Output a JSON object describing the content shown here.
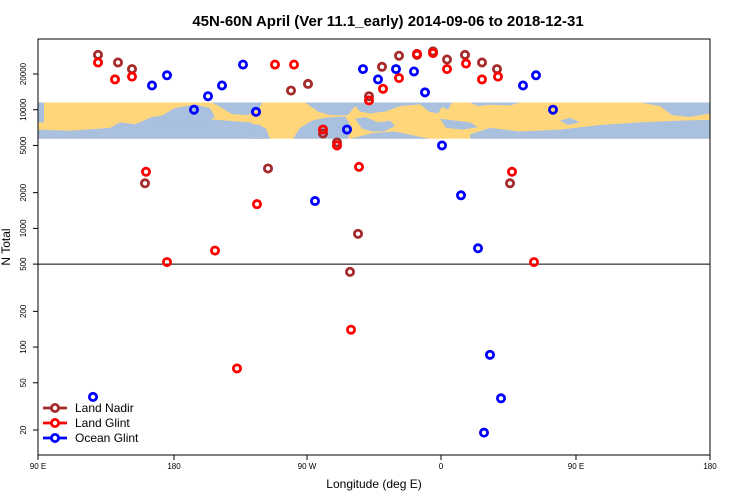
{
  "chart_data": {
    "type": "scatter",
    "title": "45N-60N April (Ver 11.1_early)   2014-09-06 to 2018-12-31",
    "xlabel": "Longitude (deg E)",
    "ylabel": "N Total",
    "y_scale": "log",
    "ylim": [
      15,
      45000
    ],
    "reference_line_y": 500,
    "background": "world map band (land yellow, ocean light blue) drawn between roughly 5700 and 11500 on the y axis",
    "colors": {
      "land": "#ffd77a",
      "ocean": "#a9c0df"
    },
    "x_ticks": [
      {
        "label": "90 E"
      },
      {
        "label": "180"
      },
      {
        "label": "90 W"
      },
      {
        "label": "0"
      },
      {
        "label": "90 E"
      },
      {
        "label": "180"
      }
    ],
    "y_ticks": [
      {
        "value": 20,
        "label": "20"
      },
      {
        "value": 50,
        "label": "50"
      },
      {
        "value": 100,
        "label": "100"
      },
      {
        "value": 200,
        "label": "200"
      },
      {
        "value": 500,
        "label": "500"
      },
      {
        "value": 1000,
        "label": "1000"
      },
      {
        "value": 2000,
        "label": "2000"
      },
      {
        "value": 5000,
        "label": "5000"
      },
      {
        "value": 10000,
        "label": "10000"
      },
      {
        "value": 20000,
        "label": "20000"
      }
    ],
    "legend": {
      "position": "bottom-left"
    },
    "series": [
      {
        "name": "Land Nadir",
        "color": "#a52a2a",
        "points": [
          {
            "x": 98,
            "y": 29000
          },
          {
            "x": 118,
            "y": 25000
          },
          {
            "x": 132,
            "y": 22000
          },
          {
            "x": 145,
            "y": 2400
          },
          {
            "x": 268,
            "y": 3200
          },
          {
            "x": 291,
            "y": 14500
          },
          {
            "x": 308,
            "y": 16500
          },
          {
            "x": 323,
            "y": 6300
          },
          {
            "x": 337,
            "y": 5300
          },
          {
            "x": 350,
            "y": 430
          },
          {
            "x": 358,
            "y": 900
          },
          {
            "x": 369,
            "y": 13000
          },
          {
            "x": 382,
            "y": 23000
          },
          {
            "x": 399,
            "y": 28500
          },
          {
            "x": 417,
            "y": 29000
          },
          {
            "x": 433,
            "y": 31000
          },
          {
            "x": 447,
            "y": 26500
          },
          {
            "x": 465,
            "y": 29000
          },
          {
            "x": 482,
            "y": 25000
          },
          {
            "x": 497,
            "y": 22000
          },
          {
            "x": 510,
            "y": 2400
          }
        ]
      },
      {
        "name": "Land Glint",
        "color": "#ff0000",
        "points": [
          {
            "x": 98,
            "y": 25000
          },
          {
            "x": 115,
            "y": 18000
          },
          {
            "x": 132,
            "y": 19000
          },
          {
            "x": 146,
            "y": 3000
          },
          {
            "x": 167,
            "y": 520
          },
          {
            "x": 215,
            "y": 650
          },
          {
            "x": 237,
            "y": 66
          },
          {
            "x": 257,
            "y": 1600
          },
          {
            "x": 275,
            "y": 24000
          },
          {
            "x": 294,
            "y": 24000
          },
          {
            "x": 323,
            "y": 6800
          },
          {
            "x": 337,
            "y": 5000
          },
          {
            "x": 351,
            "y": 140
          },
          {
            "x": 359,
            "y": 3300
          },
          {
            "x": 369,
            "y": 12000
          },
          {
            "x": 383,
            "y": 15000
          },
          {
            "x": 399,
            "y": 18500
          },
          {
            "x": 417,
            "y": 29500
          },
          {
            "x": 433,
            "y": 30000
          },
          {
            "x": 447,
            "y": 22000
          },
          {
            "x": 466,
            "y": 24500
          },
          {
            "x": 482,
            "y": 18000
          },
          {
            "x": 498,
            "y": 19000
          },
          {
            "x": 512,
            "y": 3000
          },
          {
            "x": 534,
            "y": 520
          }
        ]
      },
      {
        "name": "Ocean Glint",
        "color": "#0000ff",
        "points": [
          {
            "x": 93,
            "y": 38
          },
          {
            "x": 152,
            "y": 16000
          },
          {
            "x": 167,
            "y": 19500
          },
          {
            "x": 194,
            "y": 10000
          },
          {
            "x": 208,
            "y": 13000
          },
          {
            "x": 222,
            "y": 16000
          },
          {
            "x": 243,
            "y": 24000
          },
          {
            "x": 256,
            "y": 9600
          },
          {
            "x": 315,
            "y": 1700
          },
          {
            "x": 347,
            "y": 6800
          },
          {
            "x": 363,
            "y": 22000
          },
          {
            "x": 378,
            "y": 18000
          },
          {
            "x": 396,
            "y": 22000
          },
          {
            "x": 414,
            "y": 21000
          },
          {
            "x": 425,
            "y": 14000
          },
          {
            "x": 442,
            "y": 5000
          },
          {
            "x": 461,
            "y": 1900
          },
          {
            "x": 478,
            "y": 680
          },
          {
            "x": 484,
            "y": 19
          },
          {
            "x": 490,
            "y": 86
          },
          {
            "x": 501,
            "y": 37
          },
          {
            "x": 523,
            "y": 16000
          },
          {
            "x": 536,
            "y": 19500
          },
          {
            "x": 553,
            "y": 10000
          }
        ]
      }
    ]
  }
}
